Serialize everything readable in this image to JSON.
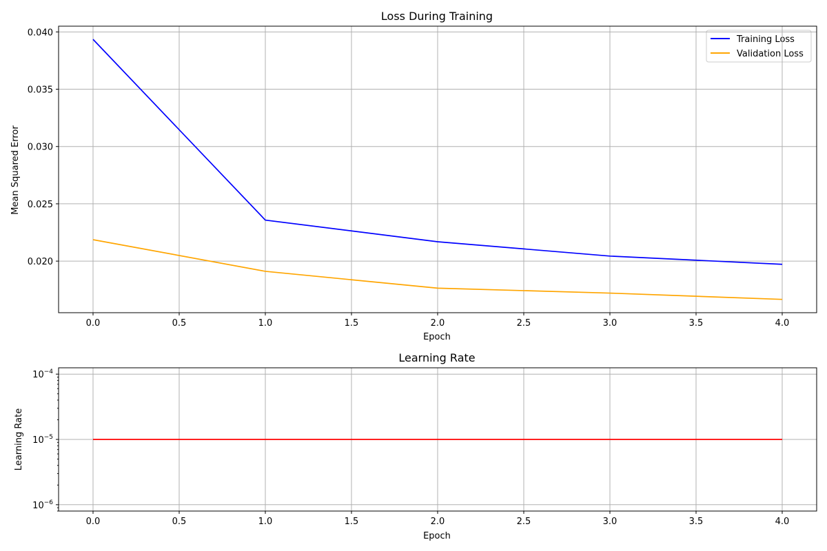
{
  "chart_data": [
    {
      "type": "line",
      "title": "Loss During Training",
      "xlabel": "Epoch",
      "ylabel": "Mean Squared Error",
      "x": [
        0,
        1,
        2,
        3,
        4
      ],
      "xlim": [
        -0.2,
        4.2
      ],
      "ylim": [
        0.0155,
        0.0405
      ],
      "xticks": [
        0.0,
        0.5,
        1.0,
        1.5,
        2.0,
        2.5,
        3.0,
        3.5,
        4.0
      ],
      "xtick_labels": [
        "0.0",
        "0.5",
        "1.0",
        "1.5",
        "2.0",
        "2.5",
        "3.0",
        "3.5",
        "4.0"
      ],
      "yticks": [
        0.02,
        0.025,
        0.03,
        0.035,
        0.04
      ],
      "ytick_labels": [
        "0.020",
        "0.025",
        "0.030",
        "0.035",
        "0.040"
      ],
      "grid": true,
      "legend_position": "top-right",
      "series": [
        {
          "name": "Training Loss",
          "color": "#0000ff",
          "values": [
            0.03935,
            0.02358,
            0.02169,
            0.02044,
            0.01972
          ]
        },
        {
          "name": "Validation Loss",
          "color": "#ffa500",
          "values": [
            0.02187,
            0.01911,
            0.01764,
            0.01721,
            0.01666
          ]
        }
      ]
    },
    {
      "type": "line",
      "title": "Learning Rate",
      "xlabel": "Epoch",
      "ylabel": "Learning Rate",
      "x": [
        0,
        1,
        2,
        3,
        4
      ],
      "xlim": [
        -0.2,
        4.2
      ],
      "yscale": "log",
      "ylim": [
        8e-07,
        0.000125
      ],
      "xticks": [
        0.0,
        0.5,
        1.0,
        1.5,
        2.0,
        2.5,
        3.0,
        3.5,
        4.0
      ],
      "xtick_labels": [
        "0.0",
        "0.5",
        "1.0",
        "1.5",
        "2.0",
        "2.5",
        "3.0",
        "3.5",
        "4.0"
      ],
      "yticks": [
        1e-06,
        1e-05,
        0.0001
      ],
      "ytick_labels": [
        {
          "base": "10",
          "exp": "−6"
        },
        {
          "base": "10",
          "exp": "−5"
        },
        {
          "base": "10",
          "exp": "−4"
        }
      ],
      "grid": true,
      "series": [
        {
          "color": "#ff0000",
          "values": [
            1e-05,
            1e-05,
            1e-05,
            1e-05,
            1e-05
          ]
        }
      ]
    }
  ]
}
